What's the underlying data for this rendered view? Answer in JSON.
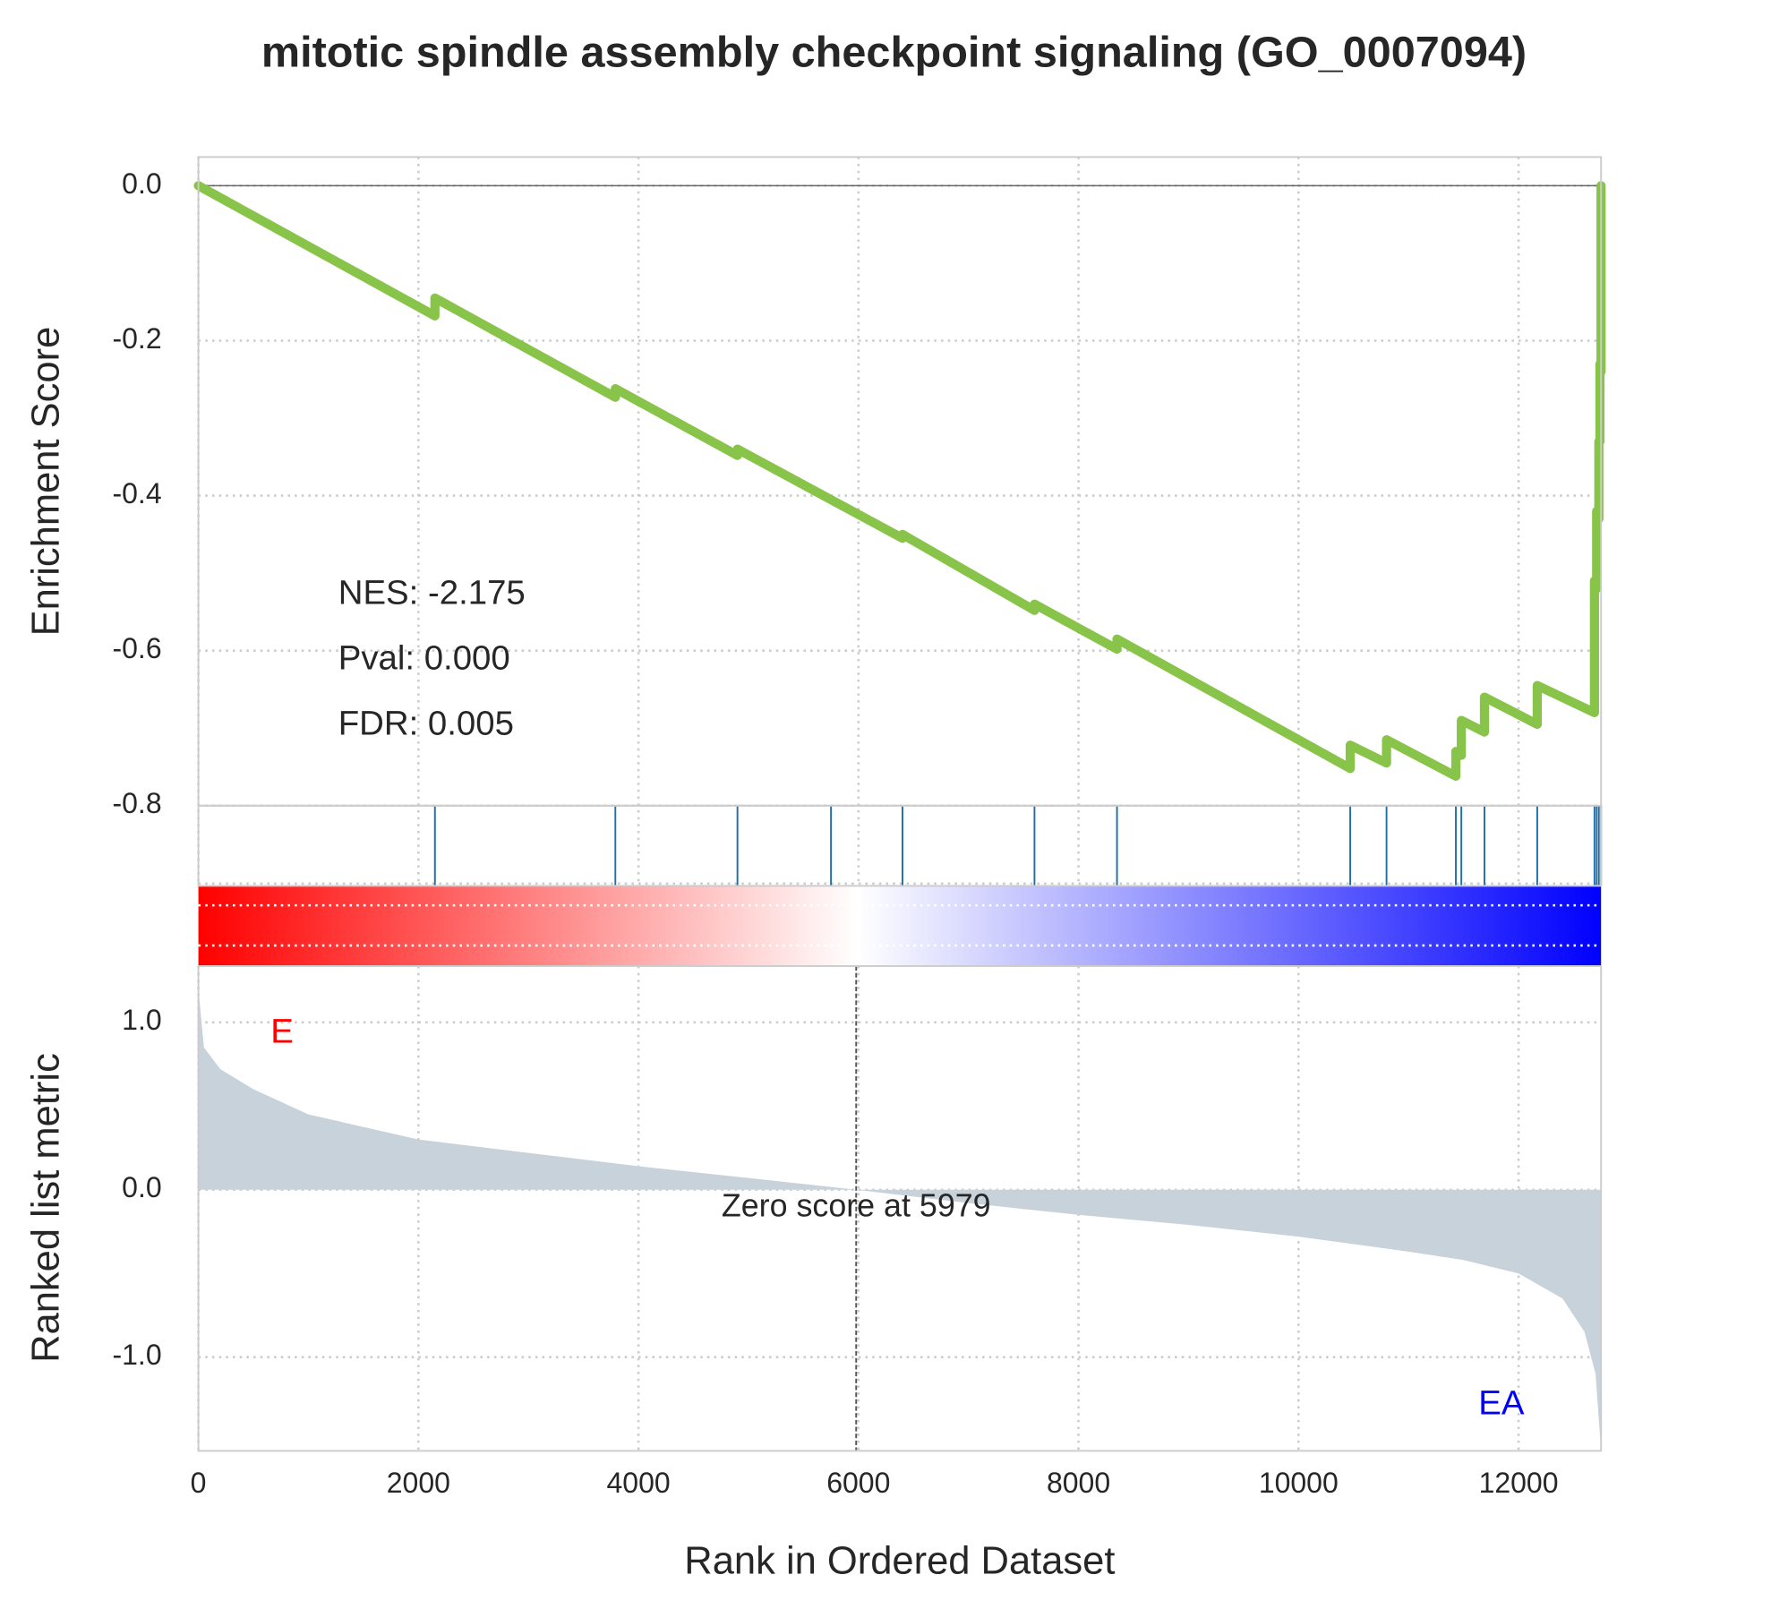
{
  "chart_data": {
    "type": "line",
    "title": "mitotic spindle assembly checkpoint signaling (GO_0007094)",
    "x_label": "Rank in Ordered Dataset",
    "xlim": [
      0,
      12750
    ],
    "xticks": [
      0,
      2000,
      4000,
      6000,
      8000,
      10000,
      12000
    ],
    "grid": true,
    "es": {
      "y_label": "Enrichment Score",
      "color": "#88c34a",
      "ylim": [
        -0.8,
        0.037
      ],
      "yticks": [
        {
          "value": 0,
          "label": "0.0"
        },
        {
          "value": -0.2,
          "label": "-0.2"
        },
        {
          "value": -0.4,
          "label": "-0.4"
        },
        {
          "value": -0.6,
          "label": "-0.6"
        },
        {
          "value": -0.8,
          "label": "-0.8"
        }
      ],
      "x": [
        0,
        2150,
        2150,
        3790,
        3790,
        4900,
        4900,
        6400,
        6400,
        7600,
        7600,
        8350,
        8350,
        10470,
        10470,
        10800,
        10800,
        11430,
        11430,
        11480,
        11480,
        11690,
        11690,
        12170,
        12170,
        12690,
        12690,
        12710,
        12710,
        12730,
        12730,
        12740,
        12740,
        12750,
        12750
      ],
      "values": [
        0,
        -0.168,
        -0.145,
        -0.273,
        -0.262,
        -0.348,
        -0.34,
        -0.455,
        -0.45,
        -0.548,
        -0.54,
        -0.598,
        -0.585,
        -0.752,
        -0.722,
        -0.745,
        -0.715,
        -0.762,
        -0.73,
        -0.735,
        -0.69,
        -0.705,
        -0.66,
        -0.695,
        -0.645,
        -0.68,
        -0.51,
        -0.52,
        -0.42,
        -0.43,
        -0.33,
        -0.33,
        -0.23,
        -0.24,
        0
      ]
    },
    "annotations": [
      "NES: -2.175",
      "Pval: 0.000",
      "FDR: 0.005"
    ],
    "hits": {
      "color": "#1f6fa8",
      "x": [
        2150,
        3790,
        4900,
        5750,
        6400,
        7600,
        8350,
        10470,
        10800,
        11430,
        11480,
        11690,
        12170,
        12690,
        12710,
        12730,
        12750
      ]
    },
    "metric": {
      "y_label": "Ranked list metric",
      "color": "#c8d2da",
      "ylim": [
        -1.56,
        1.336
      ],
      "yticks": [
        {
          "value": 1,
          "label": "1.0"
        },
        {
          "value": 0,
          "label": "0.0"
        },
        {
          "value": -1,
          "label": "-1.0"
        }
      ],
      "x": [
        0,
        50,
        200,
        500,
        1000,
        2000,
        3000,
        4000,
        5000,
        5979,
        7000,
        8000,
        9000,
        10000,
        11000,
        11500,
        12000,
        12400,
        12600,
        12700,
        12750
      ],
      "values": [
        1.2,
        0.85,
        0.72,
        0.6,
        0.45,
        0.3,
        0.22,
        0.14,
        0.07,
        0,
        -0.08,
        -0.15,
        -0.21,
        -0.28,
        -0.37,
        -0.42,
        -0.5,
        -0.65,
        -0.85,
        -1.1,
        -1.56
      ]
    },
    "zero_score": {
      "x": 5979,
      "label": "Zero score at 5979"
    },
    "pos_label": {
      "text": "E",
      "color": "#ff0000"
    },
    "neg_label": {
      "text": "EA",
      "color": "#0000ff"
    }
  }
}
